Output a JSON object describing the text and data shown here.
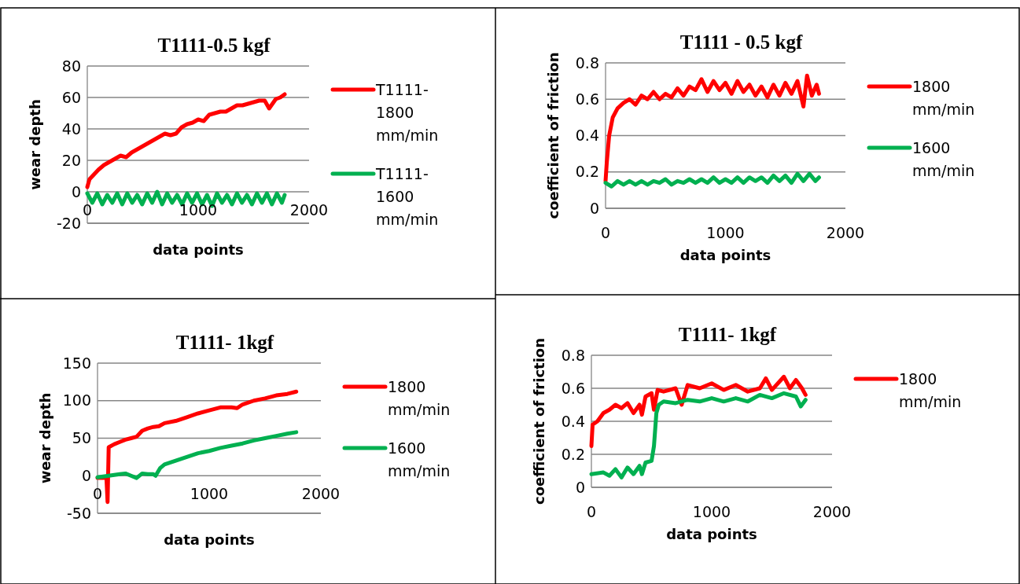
{
  "chart_data": [
    {
      "type": "line",
      "title": "T1111-0.5 kgf",
      "xlabel": "data points",
      "ylabel": "wear depth",
      "xlim": [
        0,
        2000
      ],
      "xticks": [
        0,
        1000,
        2000
      ],
      "ylim": [
        -20,
        80
      ],
      "yticks": [
        -20,
        0,
        20,
        40,
        60,
        80
      ],
      "grid": "y",
      "legend": "right",
      "marker": "none",
      "line_style": "solid",
      "series": [
        {
          "name": "T1111-1800 mm/min",
          "color": "#ff0000",
          "x": [
            0,
            20,
            60,
            100,
            150,
            200,
            250,
            300,
            350,
            400,
            450,
            500,
            550,
            600,
            650,
            700,
            750,
            800,
            850,
            900,
            950,
            1000,
            1050,
            1100,
            1150,
            1200,
            1250,
            1300,
            1350,
            1400,
            1450,
            1500,
            1550,
            1600,
            1640,
            1660,
            1700,
            1740,
            1780
          ],
          "values": [
            3,
            8,
            11,
            14,
            17,
            19,
            21,
            23,
            22,
            25,
            27,
            29,
            31,
            33,
            35,
            37,
            36,
            37,
            41,
            43,
            44,
            46,
            45,
            49,
            50,
            51,
            51,
            53,
            55,
            55,
            56,
            57,
            58,
            58,
            53,
            55,
            59,
            60,
            62
          ]
        },
        {
          "name": "T1111-1600 mm/min",
          "color": "#00b050",
          "x": [
            0,
            45,
            90,
            135,
            180,
            225,
            270,
            315,
            360,
            405,
            450,
            495,
            540,
            585,
            630,
            675,
            720,
            765,
            810,
            855,
            900,
            945,
            990,
            1035,
            1080,
            1125,
            1170,
            1215,
            1260,
            1305,
            1350,
            1395,
            1440,
            1485,
            1530,
            1575,
            1620,
            1665,
            1710,
            1755,
            1780
          ],
          "values": [
            -1,
            -7,
            -1,
            -8,
            -2,
            -7,
            -1,
            -8,
            -1,
            -7,
            -2,
            -8,
            -1,
            -7,
            0,
            -8,
            -1,
            -7,
            -2,
            -8,
            -1,
            -7,
            -1,
            -8,
            -2,
            -9,
            -1,
            -7,
            -2,
            -8,
            -1,
            -7,
            -2,
            -8,
            -1,
            -7,
            -1,
            -8,
            -1,
            -7,
            -2
          ]
        }
      ]
    },
    {
      "type": "line",
      "title": "T1111 - 0.5 kgf",
      "xlabel": "data points",
      "ylabel": "coefficient of friction",
      "xlim": [
        0,
        2000
      ],
      "xticks": [
        0,
        1000,
        2000
      ],
      "ylim": [
        0,
        0.8
      ],
      "yticks": [
        0,
        0.2,
        0.4,
        0.6,
        0.8
      ],
      "grid": "y",
      "legend": "right",
      "marker": "none",
      "line_style": "solid",
      "series": [
        {
          "name": "1800 mm/min",
          "color": "#ff0000",
          "x": [
            0,
            10,
            30,
            60,
            100,
            150,
            200,
            250,
            300,
            350,
            400,
            450,
            500,
            550,
            600,
            650,
            700,
            750,
            800,
            850,
            900,
            950,
            1000,
            1050,
            1100,
            1150,
            1200,
            1250,
            1300,
            1350,
            1400,
            1450,
            1500,
            1550,
            1600,
            1650,
            1680,
            1720,
            1760,
            1780
          ],
          "values": [
            0.15,
            0.25,
            0.4,
            0.5,
            0.55,
            0.58,
            0.6,
            0.57,
            0.62,
            0.6,
            0.64,
            0.6,
            0.63,
            0.61,
            0.66,
            0.62,
            0.67,
            0.65,
            0.71,
            0.64,
            0.7,
            0.65,
            0.69,
            0.63,
            0.7,
            0.64,
            0.68,
            0.62,
            0.67,
            0.61,
            0.68,
            0.62,
            0.69,
            0.63,
            0.7,
            0.56,
            0.73,
            0.62,
            0.68,
            0.63
          ]
        },
        {
          "name": "1600 mm/min",
          "color": "#00b050",
          "x": [
            0,
            50,
            100,
            150,
            200,
            250,
            300,
            350,
            400,
            450,
            500,
            550,
            600,
            650,
            700,
            750,
            800,
            850,
            900,
            950,
            1000,
            1050,
            1100,
            1150,
            1200,
            1250,
            1300,
            1350,
            1400,
            1450,
            1500,
            1550,
            1600,
            1650,
            1700,
            1750,
            1780
          ],
          "values": [
            0.14,
            0.12,
            0.15,
            0.13,
            0.15,
            0.13,
            0.15,
            0.13,
            0.15,
            0.14,
            0.16,
            0.13,
            0.15,
            0.14,
            0.16,
            0.14,
            0.16,
            0.14,
            0.17,
            0.14,
            0.16,
            0.14,
            0.17,
            0.14,
            0.17,
            0.15,
            0.17,
            0.14,
            0.18,
            0.15,
            0.18,
            0.14,
            0.19,
            0.15,
            0.19,
            0.15,
            0.17
          ]
        }
      ]
    },
    {
      "type": "line",
      "title": "T1111- 1kgf",
      "xlabel": "data points",
      "ylabel": "wear depth",
      "xlim": [
        0,
        2000
      ],
      "xticks": [
        0,
        1000,
        2000
      ],
      "ylim": [
        -50,
        150
      ],
      "yticks": [
        -50,
        0,
        50,
        100,
        150
      ],
      "grid": "y",
      "legend": "right",
      "marker": "none",
      "line_style": "solid",
      "series": [
        {
          "name": "1800 mm/min",
          "color": "#ff0000",
          "x": [
            0,
            80,
            90,
            100,
            150,
            200,
            250,
            300,
            350,
            400,
            450,
            500,
            550,
            600,
            700,
            800,
            900,
            1000,
            1100,
            1200,
            1250,
            1300,
            1400,
            1500,
            1600,
            1700,
            1780
          ],
          "values": [
            -3,
            -3,
            -35,
            38,
            42,
            45,
            48,
            50,
            52,
            60,
            63,
            65,
            66,
            70,
            73,
            78,
            83,
            87,
            91,
            91,
            90,
            95,
            100,
            103,
            107,
            109,
            112
          ]
        },
        {
          "name": "1600 mm/min",
          "color": "#00b050",
          "x": [
            0,
            100,
            200,
            250,
            300,
            350,
            400,
            450,
            500,
            520,
            560,
            600,
            700,
            800,
            900,
            1000,
            1100,
            1200,
            1300,
            1400,
            1500,
            1600,
            1700,
            1780
          ],
          "values": [
            -2,
            0,
            2,
            3,
            0,
            -3,
            3,
            2,
            2,
            0,
            10,
            15,
            20,
            25,
            30,
            33,
            37,
            40,
            43,
            47,
            50,
            53,
            56,
            58
          ]
        }
      ]
    },
    {
      "type": "line",
      "title": "T1111- 1kgf",
      "xlabel": "data points",
      "ylabel": "coefficient of friction",
      "xlim": [
        0,
        2000
      ],
      "xticks": [
        0,
        1000,
        2000
      ],
      "ylim": [
        0,
        0.8
      ],
      "yticks": [
        0,
        0.2,
        0.4,
        0.6,
        0.8
      ],
      "grid": "y",
      "legend": "right",
      "marker": "none",
      "line_style": "solid",
      "series": [
        {
          "name": "1800 mm/min",
          "color": "#ff0000",
          "x": [
            0,
            10,
            50,
            100,
            150,
            200,
            250,
            300,
            350,
            400,
            420,
            450,
            500,
            520,
            550,
            600,
            700,
            750,
            800,
            900,
            1000,
            1100,
            1200,
            1300,
            1400,
            1450,
            1500,
            1600,
            1650,
            1700,
            1750,
            1780
          ],
          "values": [
            0.25,
            0.38,
            0.4,
            0.45,
            0.47,
            0.5,
            0.48,
            0.51,
            0.45,
            0.5,
            0.44,
            0.55,
            0.57,
            0.47,
            0.59,
            0.58,
            0.6,
            0.5,
            0.62,
            0.6,
            0.63,
            0.59,
            0.62,
            0.58,
            0.6,
            0.66,
            0.59,
            0.67,
            0.6,
            0.65,
            0.6,
            0.56
          ]
        },
        {
          "color": "#00b050",
          "x": [
            0,
            100,
            150,
            200,
            250,
            300,
            350,
            400,
            420,
            450,
            500,
            520,
            540,
            560,
            600,
            700,
            800,
            900,
            1000,
            1100,
            1200,
            1300,
            1400,
            1500,
            1600,
            1700,
            1740,
            1780
          ],
          "values": [
            0.08,
            0.09,
            0.07,
            0.11,
            0.06,
            0.12,
            0.08,
            0.13,
            0.08,
            0.15,
            0.16,
            0.25,
            0.45,
            0.5,
            0.52,
            0.51,
            0.53,
            0.52,
            0.54,
            0.52,
            0.54,
            0.52,
            0.56,
            0.54,
            0.57,
            0.55,
            0.49,
            0.53
          ]
        }
      ]
    }
  ]
}
